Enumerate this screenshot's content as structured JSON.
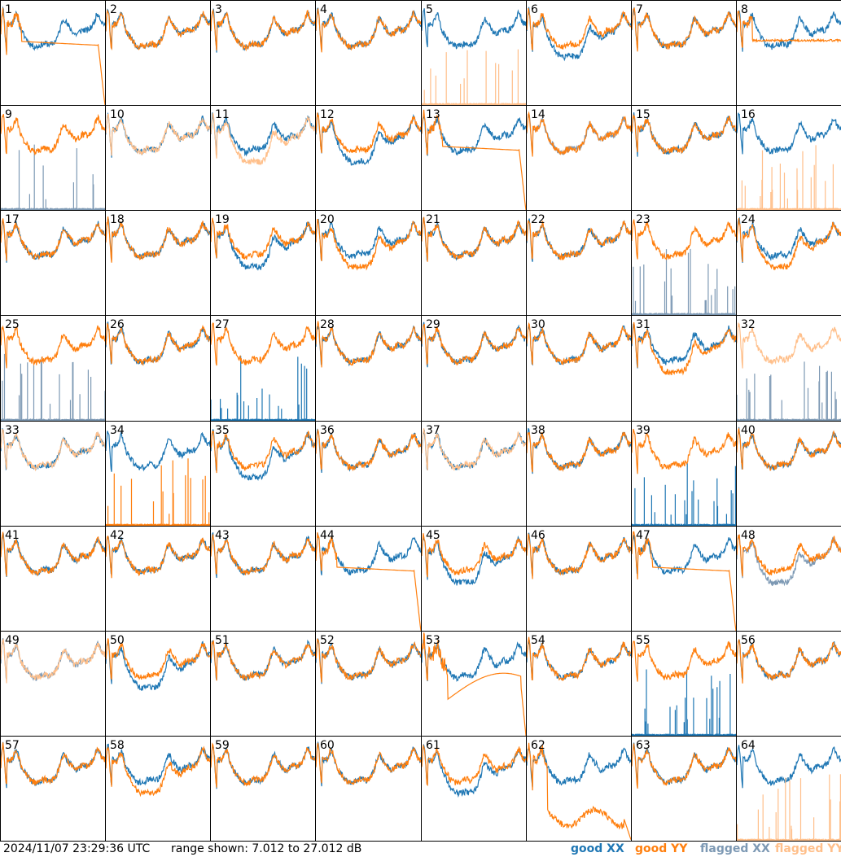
{
  "footer": {
    "timestamp": "2024/11/07 23:29:36 UTC",
    "range": "range shown: 7.012 to 27.012 dB",
    "legend_good_xx": "good XX",
    "legend_good_yy": "good YY",
    "legend_flagged_xx": "flagged XX",
    "legend_flagged_yy": "flagged YY"
  },
  "colors": {
    "good_xx": "#1f77b4",
    "good_yy": "#ff7f0e",
    "flagged_xx": "#7d99b4",
    "flagged_yy": "#ffbf8a"
  },
  "chart_data": {
    "type": "line",
    "layout": "8x8 grid of small-multiple spectra",
    "ylim": [
      7.012,
      27.012
    ],
    "yunit": "dB",
    "panels": [
      {
        "id": "1",
        "xx": "good",
        "yy": "good",
        "xx_mode": "normal",
        "yy_mode": "drop"
      },
      {
        "id": "2",
        "xx": "good",
        "yy": "good",
        "xx_mode": "normal",
        "yy_mode": "normal"
      },
      {
        "id": "3",
        "xx": "good",
        "yy": "good",
        "xx_mode": "normal",
        "yy_mode": "normal"
      },
      {
        "id": "4",
        "xx": "good",
        "yy": "good",
        "xx_mode": "normal",
        "yy_mode": "normal"
      },
      {
        "id": "5",
        "xx": "good",
        "yy": "flagged",
        "xx_mode": "normal",
        "yy_mode": "spiky"
      },
      {
        "id": "6",
        "xx": "good",
        "yy": "good",
        "xx_mode": "low",
        "yy_mode": "normal"
      },
      {
        "id": "7",
        "xx": "good",
        "yy": "good",
        "xx_mode": "normal",
        "yy_mode": "normal"
      },
      {
        "id": "8",
        "xx": "good",
        "yy": "good",
        "xx_mode": "normal",
        "yy_mode": "flat"
      },
      {
        "id": "9",
        "xx": "flagged",
        "yy": "good",
        "xx_mode": "spiky",
        "yy_mode": "normal"
      },
      {
        "id": "10",
        "xx": "good",
        "yy": "flagged",
        "xx_mode": "normal",
        "yy_mode": "normal"
      },
      {
        "id": "11",
        "xx": "good",
        "yy": "flagged",
        "xx_mode": "normal",
        "yy_mode": "low"
      },
      {
        "id": "12",
        "xx": "good",
        "yy": "good",
        "xx_mode": "low",
        "yy_mode": "normal"
      },
      {
        "id": "13",
        "xx": "good",
        "yy": "good",
        "xx_mode": "normal",
        "yy_mode": "drop"
      },
      {
        "id": "14",
        "xx": "flagged",
        "yy": "good",
        "xx_mode": "normal",
        "yy_mode": "normal"
      },
      {
        "id": "15",
        "xx": "good",
        "yy": "good",
        "xx_mode": "normal",
        "yy_mode": "normal"
      },
      {
        "id": "16",
        "xx": "good",
        "yy": "flagged",
        "xx_mode": "normal",
        "yy_mode": "spiky"
      },
      {
        "id": "17",
        "xx": "good",
        "yy": "good",
        "xx_mode": "normal",
        "yy_mode": "normal"
      },
      {
        "id": "18",
        "xx": "good",
        "yy": "good",
        "xx_mode": "normal",
        "yy_mode": "normal"
      },
      {
        "id": "19",
        "xx": "good",
        "yy": "good",
        "xx_mode": "low",
        "yy_mode": "normal"
      },
      {
        "id": "20",
        "xx": "good",
        "yy": "good",
        "xx_mode": "normal",
        "yy_mode": "low"
      },
      {
        "id": "21",
        "xx": "good",
        "yy": "good",
        "xx_mode": "normal",
        "yy_mode": "normal"
      },
      {
        "id": "22",
        "xx": "good",
        "yy": "good",
        "xx_mode": "normal",
        "yy_mode": "normal"
      },
      {
        "id": "23",
        "xx": "flagged",
        "yy": "good",
        "xx_mode": "spiky",
        "yy_mode": "normal"
      },
      {
        "id": "24",
        "xx": "good",
        "yy": "good",
        "xx_mode": "normal",
        "yy_mode": "low"
      },
      {
        "id": "25",
        "xx": "flagged",
        "yy": "good",
        "xx_mode": "spiky",
        "yy_mode": "normal"
      },
      {
        "id": "26",
        "xx": "good",
        "yy": "good",
        "xx_mode": "normal",
        "yy_mode": "normal"
      },
      {
        "id": "27",
        "xx": "good",
        "yy": "good",
        "xx_mode": "spiky",
        "yy_mode": "normal"
      },
      {
        "id": "28",
        "xx": "good",
        "yy": "good",
        "xx_mode": "normal",
        "yy_mode": "normal"
      },
      {
        "id": "29",
        "xx": "good",
        "yy": "good",
        "xx_mode": "normal",
        "yy_mode": "normal"
      },
      {
        "id": "30",
        "xx": "good",
        "yy": "good",
        "xx_mode": "normal",
        "yy_mode": "normal"
      },
      {
        "id": "31",
        "xx": "good",
        "yy": "good",
        "xx_mode": "normal",
        "yy_mode": "low"
      },
      {
        "id": "32",
        "xx": "flagged",
        "yy": "flagged",
        "xx_mode": "spiky",
        "yy_mode": "normal"
      },
      {
        "id": "33",
        "xx": "good",
        "yy": "flagged",
        "xx_mode": "normal",
        "yy_mode": "normal"
      },
      {
        "id": "34",
        "xx": "good",
        "yy": "good",
        "xx_mode": "normal",
        "yy_mode": "spiky"
      },
      {
        "id": "35",
        "xx": "good",
        "yy": "good",
        "xx_mode": "low",
        "yy_mode": "normal"
      },
      {
        "id": "36",
        "xx": "good",
        "yy": "good",
        "xx_mode": "normal",
        "yy_mode": "normal"
      },
      {
        "id": "37",
        "xx": "good",
        "yy": "flagged",
        "xx_mode": "normal",
        "yy_mode": "normal"
      },
      {
        "id": "38",
        "xx": "good",
        "yy": "good",
        "xx_mode": "normal",
        "yy_mode": "normal"
      },
      {
        "id": "39",
        "xx": "good",
        "yy": "good",
        "xx_mode": "spiky",
        "yy_mode": "normal"
      },
      {
        "id": "40",
        "xx": "good",
        "yy": "good",
        "xx_mode": "normal",
        "yy_mode": "normal"
      },
      {
        "id": "41",
        "xx": "good",
        "yy": "good",
        "xx_mode": "normal",
        "yy_mode": "normal"
      },
      {
        "id": "42",
        "xx": "good",
        "yy": "good",
        "xx_mode": "normal",
        "yy_mode": "normal"
      },
      {
        "id": "43",
        "xx": "good",
        "yy": "good",
        "xx_mode": "normal",
        "yy_mode": "normal"
      },
      {
        "id": "44",
        "xx": "good",
        "yy": "good",
        "xx_mode": "normal",
        "yy_mode": "drop"
      },
      {
        "id": "45",
        "xx": "good",
        "yy": "good",
        "xx_mode": "low",
        "yy_mode": "normal"
      },
      {
        "id": "46",
        "xx": "good",
        "yy": "good",
        "xx_mode": "normal",
        "yy_mode": "normal"
      },
      {
        "id": "47",
        "xx": "good",
        "yy": "good",
        "xx_mode": "normal",
        "yy_mode": "drop"
      },
      {
        "id": "48",
        "xx": "flagged",
        "yy": "good",
        "xx_mode": "low",
        "yy_mode": "normal"
      },
      {
        "id": "49",
        "xx": "flagged",
        "yy": "flagged",
        "xx_mode": "normal",
        "yy_mode": "normal"
      },
      {
        "id": "50",
        "xx": "good",
        "yy": "good",
        "xx_mode": "low",
        "yy_mode": "normal"
      },
      {
        "id": "51",
        "xx": "good",
        "yy": "good",
        "xx_mode": "normal",
        "yy_mode": "normal"
      },
      {
        "id": "52",
        "xx": "good",
        "yy": "good",
        "xx_mode": "normal",
        "yy_mode": "normal"
      },
      {
        "id": "53",
        "xx": "good",
        "yy": "good",
        "xx_mode": "normal",
        "yy_mode": "arc"
      },
      {
        "id": "54",
        "xx": "good",
        "yy": "good",
        "xx_mode": "normal",
        "yy_mode": "normal"
      },
      {
        "id": "55",
        "xx": "good",
        "yy": "good",
        "xx_mode": "spiky",
        "yy_mode": "normal"
      },
      {
        "id": "56",
        "xx": "good",
        "yy": "good",
        "xx_mode": "normal",
        "yy_mode": "normal"
      },
      {
        "id": "57",
        "xx": "good",
        "yy": "good",
        "xx_mode": "normal",
        "yy_mode": "normal"
      },
      {
        "id": "58",
        "xx": "good",
        "yy": "good",
        "xx_mode": "normal",
        "yy_mode": "low"
      },
      {
        "id": "59",
        "xx": "good",
        "yy": "good",
        "xx_mode": "normal",
        "yy_mode": "normal"
      },
      {
        "id": "60",
        "xx": "good",
        "yy": "good",
        "xx_mode": "normal",
        "yy_mode": "normal"
      },
      {
        "id": "61",
        "xx": "good",
        "yy": "good",
        "xx_mode": "low",
        "yy_mode": "normal"
      },
      {
        "id": "62",
        "xx": "good",
        "yy": "good",
        "xx_mode": "normal",
        "yy_mode": "lowdrop"
      },
      {
        "id": "63",
        "xx": "good",
        "yy": "good",
        "xx_mode": "normal",
        "yy_mode": "normal"
      },
      {
        "id": "64",
        "xx": "good",
        "yy": "flagged",
        "xx_mode": "normal",
        "yy_mode": "spiky"
      }
    ]
  }
}
